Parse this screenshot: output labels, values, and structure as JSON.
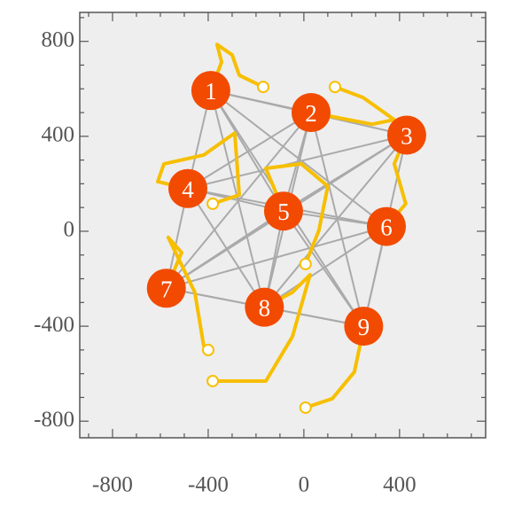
{
  "chart_data": {
    "type": "network",
    "xlim": [
      -937,
      760
    ],
    "ylim": [
      -870,
      922
    ],
    "xticks": [
      -800,
      -400,
      0,
      400
    ],
    "yticks": [
      -800,
      -400,
      0,
      400,
      800
    ],
    "xminorticks": [
      -900,
      -700,
      -600,
      -500,
      -300,
      -200,
      -100,
      100,
      200,
      300,
      500,
      600,
      700
    ],
    "yminorticks": [
      -700,
      -600,
      -500,
      -300,
      -200,
      -100,
      100,
      200,
      300,
      500,
      600,
      700,
      900
    ],
    "nodes": {
      "labels": [
        "1",
        "2",
        "3",
        "4",
        "5",
        "6",
        "7",
        "8",
        "9"
      ],
      "x": [
        -389,
        30,
        430,
        -485,
        -85,
        345,
        -575,
        -165,
        250
      ],
      "y": [
        593,
        500,
        405,
        180,
        85,
        20,
        -240,
        -320,
        -400
      ],
      "color": "#f24a00"
    },
    "edges": [
      [
        0,
        1
      ],
      [
        0,
        2
      ],
      [
        0,
        3
      ],
      [
        0,
        4
      ],
      [
        0,
        5
      ],
      [
        0,
        7
      ],
      [
        0,
        8
      ],
      [
        1,
        3
      ],
      [
        1,
        4
      ],
      [
        1,
        6
      ],
      [
        1,
        7
      ],
      [
        1,
        8
      ],
      [
        2,
        3
      ],
      [
        2,
        4
      ],
      [
        2,
        6
      ],
      [
        2,
        7
      ],
      [
        2,
        8
      ],
      [
        3,
        4
      ],
      [
        3,
        5
      ],
      [
        3,
        6
      ],
      [
        3,
        7
      ],
      [
        4,
        5
      ],
      [
        4,
        6
      ],
      [
        4,
        7
      ],
      [
        4,
        8
      ],
      [
        5,
        6
      ],
      [
        5,
        7
      ],
      [
        5,
        8
      ],
      [
        6,
        7
      ],
      [
        6,
        8
      ],
      [
        7,
        8
      ]
    ],
    "edge_color": "#aaaaaa",
    "trajectory_color": "#f7bf00",
    "trajectories": [
      {
        "x": [
          -389,
          -344,
          -363,
          -300,
          -270,
          -170
        ],
        "y": [
          593,
          713,
          787,
          743,
          657,
          608
        ]
      },
      {
        "x": [
          30,
          285,
          378,
          248,
          130
        ],
        "y": [
          500,
          451,
          470,
          563,
          608
        ]
      },
      {
        "x": [
          430,
          378,
          426,
          344
        ],
        "y": [
          407,
          284,
          116,
          19
        ]
      },
      {
        "x": [
          -485,
          -611,
          -585,
          -419,
          -289,
          -270,
          -381
        ],
        "y": [
          179,
          209,
          284,
          321,
          414,
          153,
          116
        ]
      },
      {
        "x": [
          -85,
          -159,
          -11,
          100,
          63,
          7
        ],
        "y": [
          86,
          265,
          284,
          190,
          4,
          -138
        ]
      },
      {
        "x": [
          -574,
          -511,
          -567,
          -456,
          -419,
          -400
        ],
        "y": [
          -239,
          -90,
          -26,
          -257,
          -481,
          -500
        ]
      },
      {
        "x": [
          -167,
          -48,
          26,
          -48,
          -159,
          -381
        ],
        "y": [
          -321,
          -257,
          -183,
          -444,
          -631,
          -631
        ]
      },
      {
        "x": [
          252,
          211,
          119,
          7
        ],
        "y": [
          -399,
          -593,
          -705,
          -743
        ]
      }
    ]
  }
}
